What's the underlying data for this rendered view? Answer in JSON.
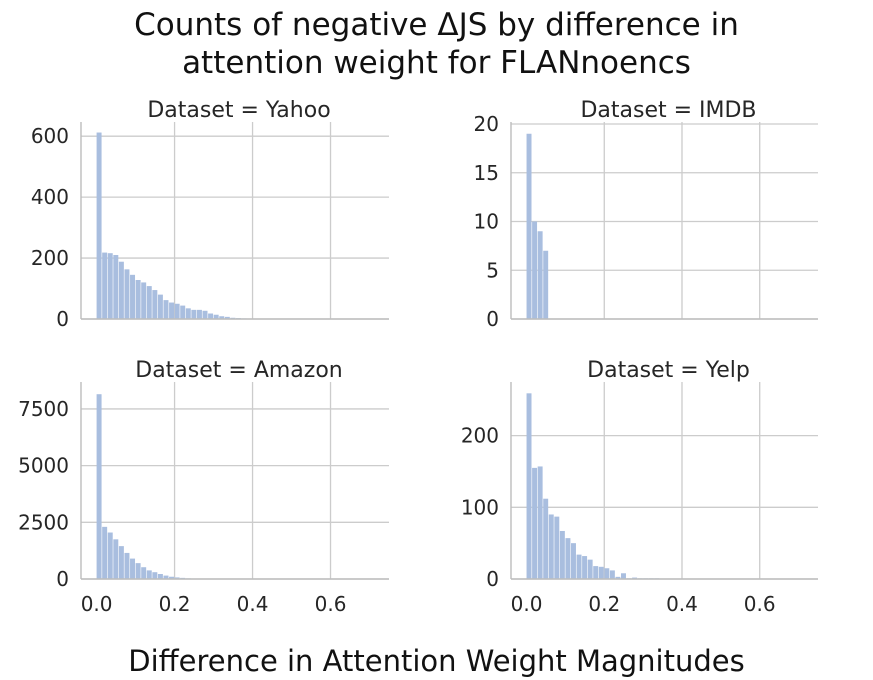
{
  "figure": {
    "title_line1": "Counts of negative ΔJS by difference in",
    "title_line2": "attention weight for FLANnoencs",
    "xlabel": "Difference in Attention Weight Magnitudes"
  },
  "colors": {
    "bar": "#a9bedf",
    "grid": "#cccccc",
    "spine": "#bdbdbd",
    "text": "#262626"
  },
  "chart_data": [
    {
      "type": "bar",
      "title": "Dataset = Yahoo",
      "bin_width": 0.0143,
      "xlim": [
        -0.04,
        0.75
      ],
      "ylim": [
        0,
        640
      ],
      "yticks": [
        0,
        200,
        400,
        600
      ],
      "ytick_labels": [
        "0",
        "200",
        "400",
        "600"
      ],
      "xticks": [
        0.0,
        0.2,
        0.4,
        0.6
      ],
      "xtick_labels": [],
      "values": [
        612,
        218,
        216,
        210,
        188,
        163,
        145,
        128,
        120,
        108,
        95,
        80,
        62,
        54,
        50,
        44,
        35,
        30,
        30,
        27,
        18,
        14,
        9,
        7,
        4,
        3,
        2,
        1,
        1
      ]
    },
    {
      "type": "bar",
      "title": "Dataset = IMDB",
      "bin_width": 0.0143,
      "xlim": [
        -0.04,
        0.75
      ],
      "ylim": [
        0,
        20
      ],
      "yticks": [
        0,
        5,
        10,
        15,
        20
      ],
      "ytick_labels": [
        "0",
        "5",
        "10",
        "15",
        "20"
      ],
      "xticks": [
        0.0,
        0.2,
        0.4,
        0.6
      ],
      "xtick_labels": [],
      "values": [
        19,
        10,
        9,
        7
      ]
    },
    {
      "type": "bar",
      "title": "Dataset = Amazon",
      "bin_width": 0.0143,
      "xlim": [
        -0.04,
        0.75
      ],
      "ylim": [
        0,
        8600
      ],
      "yticks": [
        0,
        2500,
        5000,
        7500
      ],
      "ytick_labels": [
        "0",
        "2500",
        "5000",
        "7500"
      ],
      "xticks": [
        0.0,
        0.2,
        0.4,
        0.6
      ],
      "xtick_labels": [
        "0.0",
        "0.2",
        "0.4",
        "0.6"
      ],
      "values": [
        8150,
        2300,
        2050,
        1750,
        1450,
        1150,
        900,
        700,
        520,
        380,
        300,
        220,
        150,
        100,
        70,
        50,
        30,
        20,
        12,
        8,
        5,
        3,
        2,
        1
      ]
    },
    {
      "type": "bar",
      "title": "Dataset = Yelp",
      "bin_width": 0.0143,
      "xlim": [
        -0.04,
        0.75
      ],
      "ylim": [
        0,
        272
      ],
      "yticks": [
        0,
        100,
        200
      ],
      "ytick_labels": [
        "0",
        "100",
        "200"
      ],
      "xticks": [
        0.0,
        0.2,
        0.4,
        0.6
      ],
      "xtick_labels": [
        "0.0",
        "0.2",
        "0.4",
        "0.6"
      ],
      "values": [
        259,
        155,
        157,
        112,
        90,
        87,
        67,
        57,
        50,
        34,
        32,
        27,
        18,
        17,
        15,
        12,
        3,
        8,
        1,
        2,
        1,
        1,
        1,
        1
      ]
    }
  ]
}
